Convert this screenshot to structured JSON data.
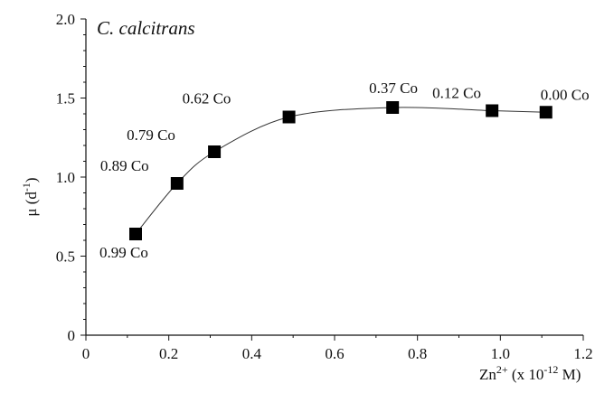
{
  "chart_data": {
    "type": "scatter",
    "title": "C. calcitrans",
    "xlabel": {
      "base": "Zn",
      "sup": "2+",
      "rest1": " (x 10",
      "sup2": "-12",
      "rest2": " M)"
    },
    "ylabel": {
      "base": "μ (d",
      "sup": "-1",
      "rest": ")"
    },
    "xlim": [
      0,
      1.2
    ],
    "ylim": [
      0,
      2.0
    ],
    "x_ticks": [
      "0",
      "0.2",
      "0.4",
      "0.6",
      "0.8",
      "1.0",
      "1.2"
    ],
    "y_ticks": [
      "0",
      "0.5",
      "1.0",
      "1.5",
      "2.0"
    ],
    "grid": false,
    "fit_line": true,
    "points": [
      {
        "x": 0.12,
        "y": 0.64,
        "label": "0.99 Co"
      },
      {
        "x": 0.22,
        "y": 0.96,
        "label": "0.89 Co"
      },
      {
        "x": 0.31,
        "y": 1.16,
        "label": "0.79 Co"
      },
      {
        "x": 0.49,
        "y": 1.38,
        "label": "0.62 Co"
      },
      {
        "x": 0.74,
        "y": 1.44,
        "label": "0.37 Co"
      },
      {
        "x": 0.98,
        "y": 1.42,
        "label": "0.12 Co"
      },
      {
        "x": 1.11,
        "y": 1.41,
        "label": "0.00 Co"
      }
    ]
  }
}
